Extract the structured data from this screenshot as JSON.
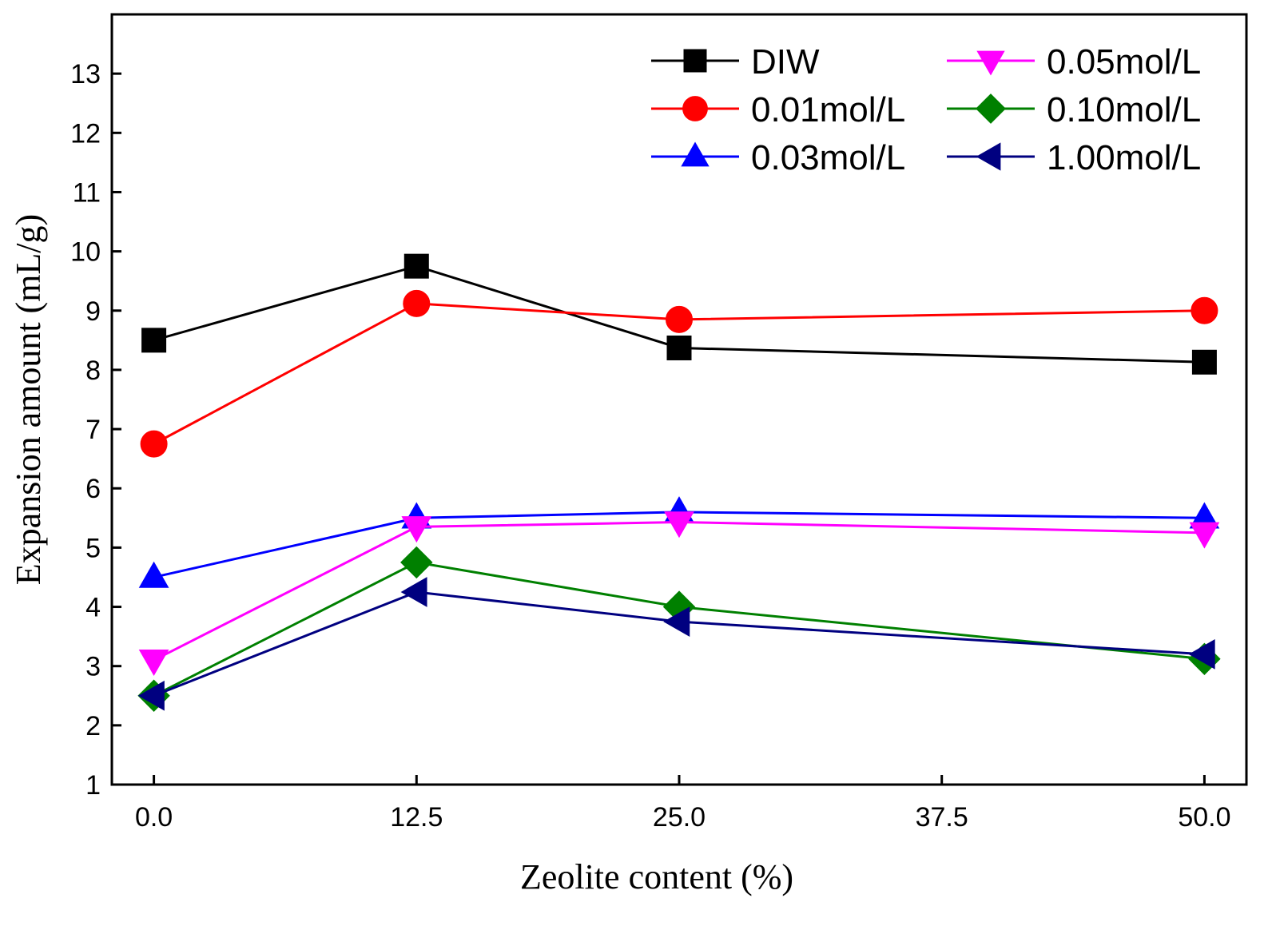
{
  "chart_data": {
    "type": "line",
    "title": "",
    "xlabel": "Zeolite content (%)",
    "ylabel": "Expansion amount (mL/g)",
    "xlim": [
      -2,
      52
    ],
    "ylim": [
      1,
      14
    ],
    "x_ticks": [
      "0.0",
      "12.5",
      "25.0",
      "37.5",
      "50.0"
    ],
    "x_tick_values": [
      0,
      12.5,
      25,
      37.5,
      50
    ],
    "y_ticks": [
      "1",
      "2",
      "3",
      "4",
      "5",
      "6",
      "7",
      "8",
      "9",
      "10",
      "11",
      "12",
      "13"
    ],
    "y_tick_values": [
      1,
      2,
      3,
      4,
      5,
      6,
      7,
      8,
      9,
      10,
      11,
      12,
      13
    ],
    "x": [
      0,
      12.5,
      25,
      50
    ],
    "legend_position": "top-right",
    "series": [
      {
        "name": "DIW",
        "marker": "square",
        "color": "#000000",
        "values": [
          8.5,
          9.75,
          8.37,
          8.13
        ]
      },
      {
        "name": "0.01mol/L",
        "marker": "circle",
        "color": "#ff0000",
        "values": [
          6.75,
          9.12,
          8.85,
          9.0
        ]
      },
      {
        "name": "0.03mol/L",
        "marker": "triangle-up",
        "color": "#0000ff",
        "values": [
          4.5,
          5.5,
          5.6,
          5.5
        ]
      },
      {
        "name": "0.05mol/L",
        "marker": "triangle-down",
        "color": "#ff00ff",
        "values": [
          3.1,
          5.35,
          5.43,
          5.25
        ]
      },
      {
        "name": "0.10mol/L",
        "marker": "diamond",
        "color": "#008000",
        "values": [
          2.5,
          4.75,
          4.0,
          3.12
        ]
      },
      {
        "name": "1.00mol/L",
        "marker": "triangle-left",
        "color": "#000080",
        "values": [
          2.5,
          4.25,
          3.75,
          3.2
        ]
      }
    ]
  }
}
